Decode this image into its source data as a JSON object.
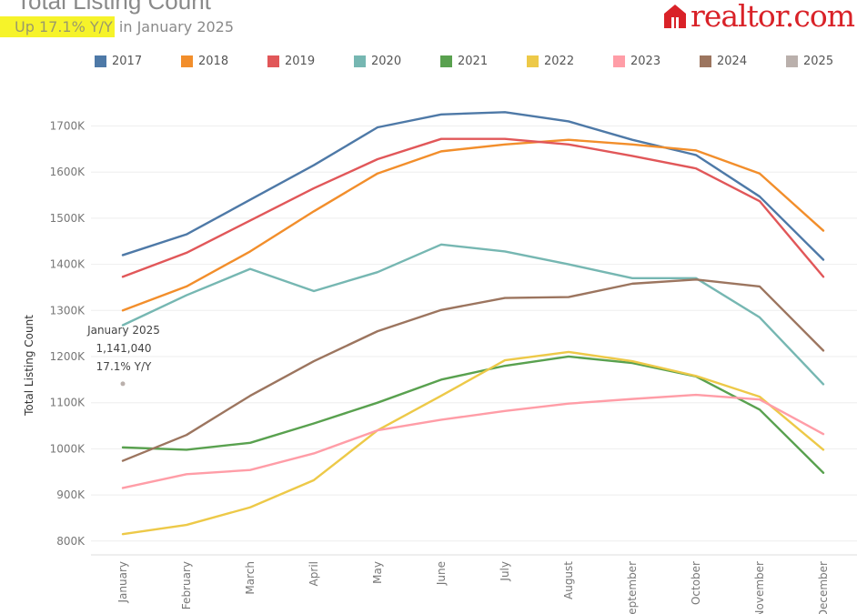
{
  "header": {
    "title": "Total Listing Count",
    "subtitle_highlight": "Up 17.1% Y/Y",
    "subtitle_rest": " in January 2025",
    "brand": "realtor.com"
  },
  "annotation": {
    "line1": "January 2025",
    "line2": "1,141,040",
    "line3": "17.1% Y/Y"
  },
  "colors": {
    "highlight": "#f6f32a",
    "brand": "#d92228"
  },
  "chart_data": {
    "type": "line",
    "title": "Total Listing Count",
    "ylabel": "Total Listing Count",
    "xlabel": "",
    "categories": [
      "January",
      "February",
      "March",
      "April",
      "May",
      "June",
      "July",
      "August",
      "September",
      "October",
      "November",
      "December"
    ],
    "yticks": [
      800000,
      900000,
      1000000,
      1100000,
      1200000,
      1300000,
      1400000,
      1500000,
      1600000,
      1700000
    ],
    "ytick_labels": [
      "800K",
      "900K",
      "1000K",
      "1100K",
      "1200K",
      "1300K",
      "1400K",
      "1500K",
      "1600K",
      "1700K"
    ],
    "ylim": [
      770000,
      1770000
    ],
    "grid": true,
    "legend": "top",
    "series": [
      {
        "name": "2017",
        "color": "#4e79a7",
        "values": [
          1420000,
          1465000,
          1540000,
          1615000,
          1697000,
          1725000,
          1730000,
          1710000,
          1670000,
          1637000,
          1547000,
          1410000
        ]
      },
      {
        "name": "2018",
        "color": "#f28e2b",
        "values": [
          1300000,
          1352000,
          1428000,
          1515000,
          1597000,
          1645000,
          1660000,
          1670000,
          1660000,
          1647000,
          1597000,
          1473000
        ]
      },
      {
        "name": "2019",
        "color": "#e15759",
        "values": [
          1373000,
          1425000,
          1495000,
          1565000,
          1628000,
          1672000,
          1672000,
          1660000,
          1635000,
          1608000,
          1537000,
          1373000
        ]
      },
      {
        "name": "2020",
        "color": "#76b7b2",
        "values": [
          1268000,
          1333000,
          1390000,
          1342000,
          1383000,
          1443000,
          1428000,
          1400000,
          1370000,
          1370000,
          1285000,
          1140000
        ]
      },
      {
        "name": "2021",
        "color": "#59a14f",
        "values": [
          1003000,
          998000,
          1013000,
          1055000,
          1100000,
          1150000,
          1180000,
          1200000,
          1186000,
          1157000,
          1085000,
          948000
        ]
      },
      {
        "name": "2022",
        "color": "#edc948",
        "values": [
          815000,
          835000,
          873000,
          932000,
          1040000,
          1115000,
          1192000,
          1210000,
          1190000,
          1158000,
          1113000,
          998000
        ]
      },
      {
        "name": "2023",
        "color": "#ff9da7",
        "values": [
          915000,
          945000,
          954000,
          990000,
          1040000,
          1063000,
          1082000,
          1098000,
          1108000,
          1117000,
          1107000,
          1032000
        ]
      },
      {
        "name": "2024",
        "color": "#9c755f",
        "values": [
          974000,
          1030000,
          1115000,
          1190000,
          1255000,
          1301000,
          1327000,
          1329000,
          1358000,
          1367000,
          1352000,
          1213000
        ]
      },
      {
        "name": "2025",
        "color": "#bab0ac",
        "values": [
          1141040,
          null,
          null,
          null,
          null,
          null,
          null,
          null,
          null,
          null,
          null,
          null
        ]
      }
    ]
  }
}
